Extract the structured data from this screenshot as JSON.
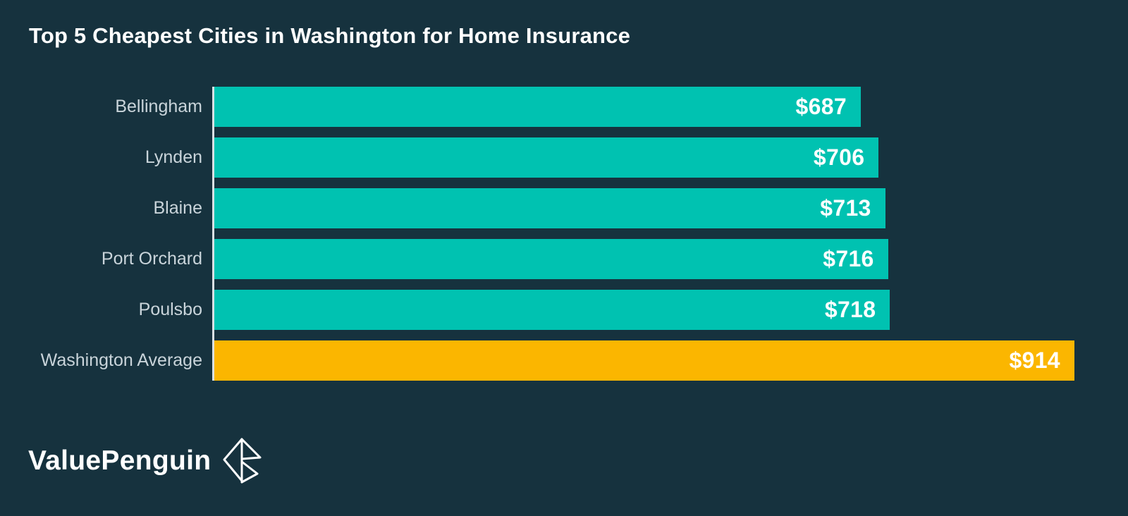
{
  "title": "Top 5 Cheapest Cities in Washington for Home Insurance",
  "chart_data": {
    "type": "bar",
    "orientation": "horizontal",
    "title": "Top 5 Cheapest Cities in Washington for Home Insurance",
    "categories": [
      "Bellingham",
      "Lynden",
      "Blaine",
      "Port Orchard",
      "Poulsbo",
      "Washington Average"
    ],
    "values": [
      687,
      706,
      713,
      716,
      718,
      914
    ],
    "value_labels": [
      "$687",
      "$706",
      "$713",
      "$716",
      "$718",
      "$914"
    ],
    "highlight_index": 5,
    "xlabel": "",
    "ylabel": "",
    "xlim": [
      0,
      971
    ],
    "grid": false,
    "legend": false,
    "colors": {
      "background": "#16323E",
      "bar": "#00C2B1",
      "highlight_bar": "#FBB600",
      "category_label": "#C9D4DA",
      "value_label": "#FFFFFF",
      "axis_line": "#D9E1E4",
      "title": "#FFFFFF"
    }
  },
  "footer": {
    "brand": "ValuePenguin",
    "logo_icon": "valuepenguin-origami-penguin-icon"
  }
}
